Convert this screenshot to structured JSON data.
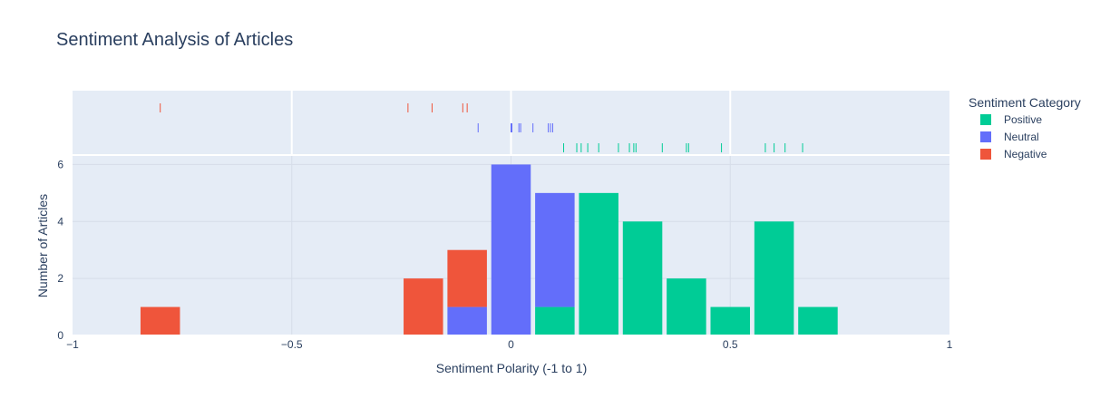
{
  "chart_data": {
    "type": "bar",
    "title": "Sentiment Analysis of Articles",
    "xlabel": "Sentiment Polarity (-1 to 1)",
    "ylabel": "Number of Articles",
    "xlim": [
      -1,
      1
    ],
    "ylim": [
      0,
      6.3
    ],
    "xticks": [
      {
        "value": -1,
        "label": "−1"
      },
      {
        "value": -0.5,
        "label": "−0.5"
      },
      {
        "value": 0,
        "label": "0"
      },
      {
        "value": 0.5,
        "label": "0.5"
      },
      {
        "value": 1,
        "label": "1"
      }
    ],
    "yticks": [
      {
        "value": 0,
        "label": "0"
      },
      {
        "value": 2,
        "label": "2"
      },
      {
        "value": 4,
        "label": "4"
      },
      {
        "value": 6,
        "label": "6"
      }
    ],
    "bin_width": 0.1,
    "barmode": "stack",
    "grid": true,
    "legend": {
      "title": "Sentiment Category",
      "placement": "right"
    },
    "series": [
      {
        "name": "Positive",
        "color": "#00cc96",
        "bins": [
          {
            "x0": 0.05,
            "x1": 0.15,
            "count": 1
          },
          {
            "x0": 0.15,
            "x1": 0.25,
            "count": 5
          },
          {
            "x0": 0.25,
            "x1": 0.35,
            "count": 4
          },
          {
            "x0": 0.35,
            "x1": 0.45,
            "count": 2
          },
          {
            "x0": 0.45,
            "x1": 0.55,
            "count": 1
          },
          {
            "x0": 0.55,
            "x1": 0.65,
            "count": 4
          },
          {
            "x0": 0.65,
            "x1": 0.75,
            "count": 1
          }
        ],
        "rug": [
          0.12,
          0.15,
          0.16,
          0.175,
          0.2,
          0.245,
          0.27,
          0.28,
          0.285,
          0.345,
          0.4,
          0.405,
          0.48,
          0.58,
          0.6,
          0.625,
          0.665
        ]
      },
      {
        "name": "Neutral",
        "color": "#636efa",
        "bins": [
          {
            "x0": -0.15,
            "x1": -0.05,
            "count": 1
          },
          {
            "x0": -0.05,
            "x1": 0.05,
            "count": 6
          },
          {
            "x0": 0.05,
            "x1": 0.15,
            "count": 4
          }
        ],
        "rug": [
          -0.075,
          0,
          0.002,
          0.018,
          0.022,
          0.05,
          0.085,
          0.09,
          0.095
        ]
      },
      {
        "name": "Negative",
        "color": "#ef553b",
        "bins": [
          {
            "x0": -0.85,
            "x1": -0.75,
            "count": 1
          },
          {
            "x0": -0.25,
            "x1": -0.15,
            "count": 2
          },
          {
            "x0": -0.15,
            "x1": -0.05,
            "count": 2
          }
        ],
        "rug": [
          -0.8,
          -0.235,
          -0.18,
          -0.11,
          -0.1
        ]
      }
    ]
  }
}
